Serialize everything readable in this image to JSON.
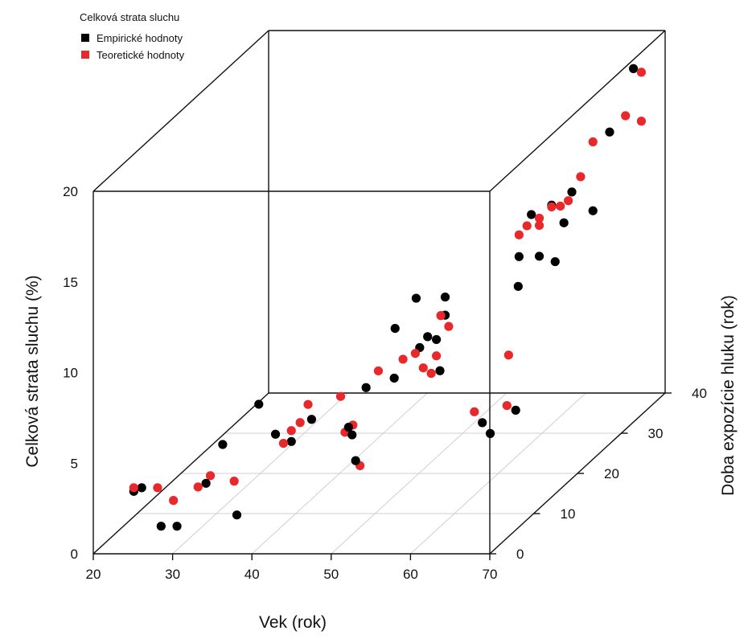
{
  "chart_data": {
    "type": "scatter",
    "projection": "3d",
    "xlabel": "Vek (rok)",
    "ylabel": "Doba expozície hluku (rok)",
    "zlabel": "Celková strata sluchu (%)",
    "xlim": [
      20,
      70
    ],
    "ylim": [
      0,
      40
    ],
    "zlim": [
      0,
      20
    ],
    "x_ticks": [
      "20",
      "30",
      "40",
      "50",
      "60",
      "70"
    ],
    "y_ticks": [
      "0",
      "10",
      "20",
      "30",
      "40"
    ],
    "z_ticks": [
      "0",
      "5",
      "10",
      "15",
      "20"
    ],
    "grid": "floor",
    "legend": {
      "title": "Celková strata sluchu",
      "position": "top-left",
      "entries": [
        {
          "label": "Empirické hodnoty",
          "color": "#000000"
        },
        {
          "label": "Teoretické hodnoty",
          "color": "#e8282b"
        }
      ]
    },
    "series": [
      {
        "name": "Empirické hodnoty",
        "color": "#000000",
        "points": [
          {
            "x": 24,
            "y": 2,
            "z": 3.0
          },
          {
            "x": 25,
            "y": 2,
            "z": 3.2
          },
          {
            "x": 28,
            "y": 1,
            "z": 1.3
          },
          {
            "x": 30,
            "y": 1,
            "z": 1.3
          },
          {
            "x": 32,
            "y": 4,
            "z": 3.0
          },
          {
            "x": 33,
            "y": 6,
            "z": 4.7
          },
          {
            "x": 37,
            "y": 2,
            "z": 1.7
          },
          {
            "x": 37,
            "y": 7,
            "z": 6.7
          },
          {
            "x": 38,
            "y": 9,
            "z": 4.6
          },
          {
            "x": 40,
            "y": 9,
            "z": 4.2
          },
          {
            "x": 42,
            "y": 10,
            "z": 5.2
          },
          {
            "x": 45,
            "y": 13,
            "z": 4.1
          },
          {
            "x": 46,
            "y": 12,
            "z": 3.9
          },
          {
            "x": 47,
            "y": 11,
            "z": 2.7
          },
          {
            "x": 45,
            "y": 17,
            "z": 5.4
          },
          {
            "x": 47,
            "y": 20,
            "z": 8.0
          },
          {
            "x": 48,
            "y": 18,
            "z": 5.7
          },
          {
            "x": 49,
            "y": 22,
            "z": 6.5
          },
          {
            "x": 48,
            "y": 23,
            "z": 9.0
          },
          {
            "x": 50,
            "y": 22,
            "z": 7.1
          },
          {
            "x": 51,
            "y": 23,
            "z": 5.0
          },
          {
            "x": 50,
            "y": 24,
            "z": 6.5
          },
          {
            "x": 50,
            "y": 26,
            "z": 8.4
          },
          {
            "x": 50,
            "y": 26,
            "z": 7.4
          },
          {
            "x": 58,
            "y": 20,
            "z": 2.8
          },
          {
            "x": 59,
            "y": 20,
            "z": 2.2
          },
          {
            "x": 60,
            "y": 24,
            "z": 2.6
          },
          {
            "x": 57,
            "y": 30,
            "z": 8.1
          },
          {
            "x": 56,
            "y": 32,
            "z": 9.3
          },
          {
            "x": 57,
            "y": 33,
            "z": 11.4
          },
          {
            "x": 58,
            "y": 33,
            "z": 9.1
          },
          {
            "x": 59,
            "y": 34,
            "z": 11.7
          },
          {
            "x": 60,
            "y": 33,
            "z": 8.8
          },
          {
            "x": 61,
            "y": 35,
            "z": 12.2
          },
          {
            "x": 60,
            "y": 35,
            "z": 10.5
          },
          {
            "x": 62,
            "y": 38,
            "z": 10.5
          },
          {
            "x": 63,
            "y": 40,
            "z": 14.4
          },
          {
            "x": 66,
            "y": 40,
            "z": 17.9
          },
          {
            "x": 66,
            "y": 40,
            "z": 22.4
          },
          {
            "x": 69,
            "y": 40,
            "z": 26.7
          }
        ]
      },
      {
        "name": "Teoretické hodnoty",
        "color": "#e8282b",
        "points": [
          {
            "x": 24,
            "y": 2,
            "z": 3.2
          },
          {
            "x": 27,
            "y": 2,
            "z": 3.2
          },
          {
            "x": 29,
            "y": 2,
            "z": 2.5
          },
          {
            "x": 31,
            "y": 4,
            "z": 2.8
          },
          {
            "x": 32,
            "y": 5,
            "z": 3.2
          },
          {
            "x": 35,
            "y": 5,
            "z": 2.9
          },
          {
            "x": 39,
            "y": 9,
            "z": 4.1
          },
          {
            "x": 40,
            "y": 9,
            "z": 4.8
          },
          {
            "x": 40,
            "y": 11,
            "z": 4.8
          },
          {
            "x": 41,
            "y": 11,
            "z": 5.8
          },
          {
            "x": 44,
            "y": 13,
            "z": 5.8
          },
          {
            "x": 44,
            "y": 14,
            "z": 3.6
          },
          {
            "x": 47,
            "y": 12,
            "z": 2.2
          },
          {
            "x": 45,
            "y": 14,
            "z": 4.0
          },
          {
            "x": 46,
            "y": 18,
            "z": 6.1
          },
          {
            "x": 48,
            "y": 20,
            "z": 6.3
          },
          {
            "x": 49,
            "y": 21,
            "z": 6.4
          },
          {
            "x": 50,
            "y": 21,
            "z": 5.6
          },
          {
            "x": 51,
            "y": 21,
            "z": 5.3
          },
          {
            "x": 50,
            "y": 24,
            "z": 5.6
          },
          {
            "x": 50,
            "y": 25,
            "z": 7.6
          },
          {
            "x": 51,
            "y": 25,
            "z": 7.0
          },
          {
            "x": 57,
            "y": 20,
            "z": 3.4
          },
          {
            "x": 60,
            "y": 22,
            "z": 3.3
          },
          {
            "x": 58,
            "y": 26,
            "z": 5.2
          },
          {
            "x": 56,
            "y": 32,
            "z": 10.5
          },
          {
            "x": 57,
            "y": 32,
            "z": 11.0
          },
          {
            "x": 58,
            "y": 33,
            "z": 10.8
          },
          {
            "x": 58,
            "y": 33,
            "z": 11.2
          },
          {
            "x": 59,
            "y": 34,
            "z": 11.6
          },
          {
            "x": 59,
            "y": 36,
            "z": 11.2
          },
          {
            "x": 60,
            "y": 36,
            "z": 11.5
          },
          {
            "x": 61,
            "y": 37,
            "z": 12.6
          },
          {
            "x": 62,
            "y": 38,
            "z": 14.3
          },
          {
            "x": 65,
            "y": 40,
            "z": 15.3
          },
          {
            "x": 67,
            "y": 40,
            "z": 15.0
          },
          {
            "x": 67,
            "y": 40,
            "z": 17.7
          },
          {
            "x": 70,
            "y": 40,
            "z": 23.8
          }
        ]
      }
    ]
  }
}
